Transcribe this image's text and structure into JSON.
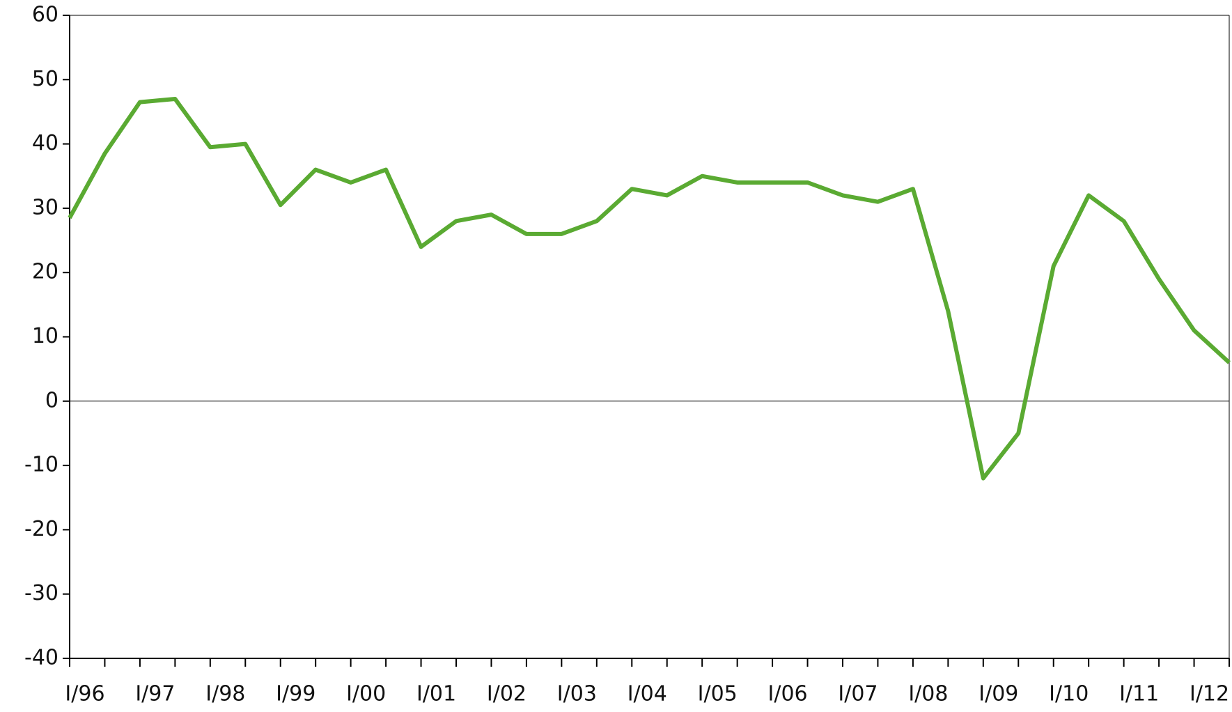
{
  "chart_data": {
    "type": "line",
    "categories": [
      "I/96",
      null,
      "I/97",
      null,
      "I/98",
      null,
      "I/99",
      null,
      "I/00",
      null,
      "I/01",
      null,
      "I/02",
      null,
      "I/03",
      null,
      "I/04",
      null,
      "I/05",
      null,
      "I/06",
      null,
      "I/07",
      null,
      "I/08",
      null,
      "I/09",
      null,
      "I/10",
      null,
      "I/11",
      null,
      "I/12",
      null
    ],
    "series": [
      {
        "color": "#5aaa32",
        "values": [
          28.5,
          38.5,
          46.5,
          47,
          39.5,
          40,
          30.5,
          36,
          34,
          36,
          24,
          28,
          29,
          26,
          26,
          28,
          33,
          32,
          35,
          34,
          34,
          34,
          32,
          31,
          33,
          14,
          -12,
          -5,
          21,
          32,
          28,
          19,
          11,
          6
        ]
      }
    ],
    "ylim": [
      -40,
      60
    ],
    "yticks": [
      -40,
      -30,
      -20,
      -10,
      0,
      10,
      20,
      30,
      40,
      50,
      60
    ],
    "grid": false
  }
}
